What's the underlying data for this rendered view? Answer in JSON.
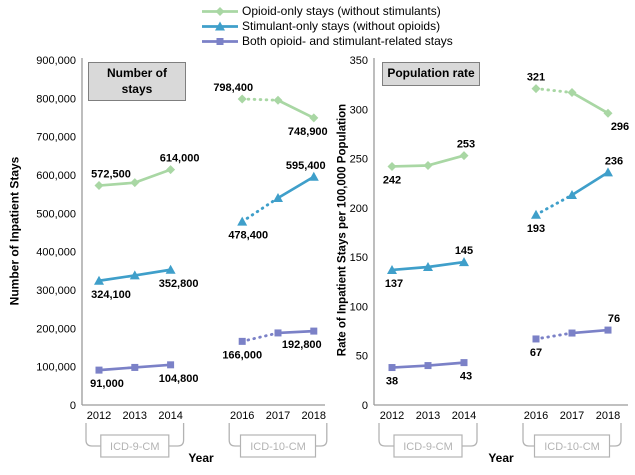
{
  "legend": {
    "items": [
      {
        "label": "Opioid-only stays (without stimulants)",
        "color": "#a9d7a4",
        "marker": "diamond"
      },
      {
        "label": "Stimulant-only stays (without opioids)",
        "color": "#3f9fca",
        "marker": "triangle"
      },
      {
        "label": "Both opioid- and stimulant-related stays",
        "color": "#7b81c7",
        "marker": "square"
      }
    ]
  },
  "chart_data": [
    {
      "type": "line",
      "panel_title": "Number of stays",
      "ylabel": "Number of Inpatient Stays",
      "xlabel": "Year",
      "ylim": [
        0,
        900000
      ],
      "ytick_step": 100000,
      "grid": false,
      "x": [
        2012,
        2013,
        2014,
        2016,
        2017,
        2018
      ],
      "x_groups": [
        {
          "label": "ICD-9-CM",
          "span": [
            2012,
            2014
          ]
        },
        {
          "label": "ICD-10-CM",
          "span": [
            2016,
            2018
          ]
        }
      ],
      "segments": [
        {
          "years": [
            2012,
            2013,
            2014
          ],
          "style": "solid"
        },
        {
          "years": [
            2016,
            2017
          ],
          "style": "dotted"
        },
        {
          "years": [
            2017,
            2018
          ],
          "style": "solid"
        }
      ],
      "series": [
        {
          "name": "Opioid-only stays (without stimulants)",
          "values": [
            572500,
            580000,
            614000,
            798400,
            795000,
            748900
          ],
          "labels": [
            {
              "year": 2012,
              "text": "572,500",
              "pos": "above",
              "dx": 12
            },
            {
              "year": 2014,
              "text": "614,000",
              "pos": "above",
              "dx": 9
            },
            {
              "year": 2016,
              "text": "798,400",
              "pos": "above",
              "dx": -9
            },
            {
              "year": 2018,
              "text": "748,900",
              "pos": "below",
              "dx": -6
            }
          ]
        },
        {
          "name": "Stimulant-only stays (without opioids)",
          "values": [
            324100,
            338000,
            352800,
            478400,
            540000,
            595400
          ],
          "labels": [
            {
              "year": 2012,
              "text": "324,100",
              "pos": "below",
              "dx": 12
            },
            {
              "year": 2014,
              "text": "352,800",
              "pos": "below",
              "dx": 8
            },
            {
              "year": 2016,
              "text": "478,400",
              "pos": "below",
              "dx": 6
            },
            {
              "year": 2018,
              "text": "595,400",
              "pos": "above",
              "dx": -8
            }
          ]
        },
        {
          "name": "Both opioid- and stimulant-related stays",
          "values": [
            91000,
            98000,
            104800,
            166000,
            188000,
            192800
          ],
          "labels": [
            {
              "year": 2012,
              "text": "91,000",
              "pos": "below",
              "dx": 8
            },
            {
              "year": 2014,
              "text": "104,800",
              "pos": "below",
              "dx": 8
            },
            {
              "year": 2016,
              "text": "166,000",
              "pos": "below",
              "dx": 0
            },
            {
              "year": 2018,
              "text": "192,800",
              "pos": "below",
              "dx": -12
            }
          ]
        }
      ]
    },
    {
      "type": "line",
      "panel_title": "Population rate",
      "ylabel": "Rate of Inpatient Stays per 100,000 Population",
      "xlabel": "Year",
      "ylim": [
        0,
        350
      ],
      "ytick_step": 50,
      "grid": false,
      "x": [
        2012,
        2013,
        2014,
        2016,
        2017,
        2018
      ],
      "x_groups": [
        {
          "label": "ICD-9-CM",
          "span": [
            2012,
            2014
          ]
        },
        {
          "label": "ICD-10-CM",
          "span": [
            2016,
            2018
          ]
        }
      ],
      "segments": [
        {
          "years": [
            2012,
            2013,
            2014
          ],
          "style": "solid"
        },
        {
          "years": [
            2016,
            2017
          ],
          "style": "dotted"
        },
        {
          "years": [
            2017,
            2018
          ],
          "style": "solid"
        }
      ],
      "series": [
        {
          "name": "Opioid-only stays (without stimulants)",
          "values": [
            242,
            243,
            253,
            321,
            317,
            296
          ],
          "labels": [
            {
              "year": 2012,
              "text": "242",
              "pos": "below",
              "dx": 0
            },
            {
              "year": 2014,
              "text": "253",
              "pos": "above",
              "dx": 2
            },
            {
              "year": 2016,
              "text": "321",
              "pos": "above",
              "dx": 0
            },
            {
              "year": 2018,
              "text": "296",
              "pos": "below",
              "dx": 12
            }
          ]
        },
        {
          "name": "Stimulant-only stays (without opioids)",
          "values": [
            137,
            140,
            145,
            193,
            213,
            236
          ],
          "labels": [
            {
              "year": 2012,
              "text": "137",
              "pos": "below",
              "dx": 2
            },
            {
              "year": 2014,
              "text": "145",
              "pos": "above",
              "dx": 0
            },
            {
              "year": 2016,
              "text": "193",
              "pos": "below",
              "dx": 0
            },
            {
              "year": 2018,
              "text": "236",
              "pos": "above",
              "dx": 6
            }
          ]
        },
        {
          "name": "Both opioid- and stimulant-related stays",
          "values": [
            38,
            40,
            43,
            67,
            73,
            76
          ],
          "labels": [
            {
              "year": 2012,
              "text": "38",
              "pos": "below",
              "dx": 0
            },
            {
              "year": 2014,
              "text": "43",
              "pos": "below",
              "dx": 2
            },
            {
              "year": 2016,
              "text": "67",
              "pos": "below",
              "dx": 0
            },
            {
              "year": 2018,
              "text": "76",
              "pos": "above",
              "dx": 6
            }
          ]
        }
      ]
    }
  ],
  "colors": {
    "axis": "#9a9a9a",
    "title_box_fill": "#d9d9d9",
    "title_box_border": "#7f7f7f",
    "icd_gray": "#b3b3b3",
    "text": "#000000"
  }
}
